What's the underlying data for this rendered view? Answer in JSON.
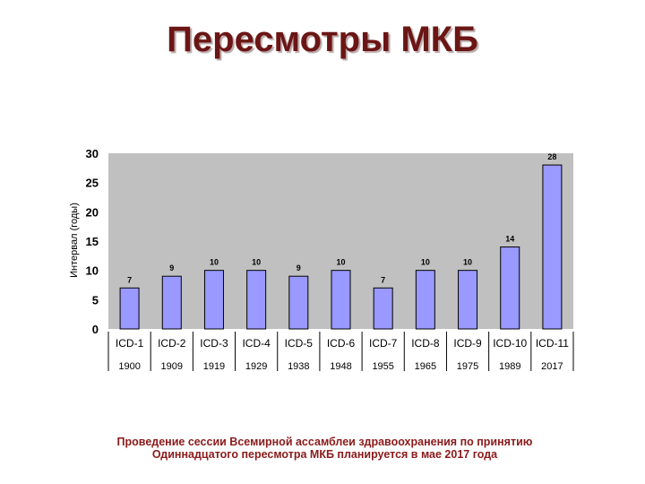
{
  "slide": {
    "title": "Пересмотры МКБ",
    "footnote_line1": "Проведение сессии Всемирной ассамблеи здравоохранения по принятию",
    "footnote_line2": "Одиннадцатого пересмотра МКБ планируется в мае 2017 года"
  },
  "chart_data": {
    "type": "bar",
    "title": "",
    "xlabel": "",
    "ylabel": "Интервал (годы)",
    "categories": [
      "ICD-1",
      "ICD-2",
      "ICD-3",
      "ICD-4",
      "ICD-5",
      "ICD-6",
      "ICD-7",
      "ICD-8",
      "ICD-9",
      "ICD-10",
      "ICD-11"
    ],
    "years": [
      "1900",
      "1909",
      "1919",
      "1929",
      "1938",
      "1948",
      "1955",
      "1965",
      "1975",
      "1989",
      "2017"
    ],
    "values": [
      7,
      9,
      10,
      10,
      9,
      10,
      7,
      10,
      10,
      14,
      28
    ],
    "ylim": [
      0,
      30
    ],
    "yticks": [
      0,
      5,
      10,
      15,
      20,
      25,
      30
    ],
    "grid": false,
    "legend": "none",
    "colors": {
      "bar_fill": "#9999ff",
      "bar_stroke": "#000000",
      "plot_background": "#c0c0c0",
      "title": "#6b1515",
      "footnote": "#8b1a1a"
    }
  }
}
